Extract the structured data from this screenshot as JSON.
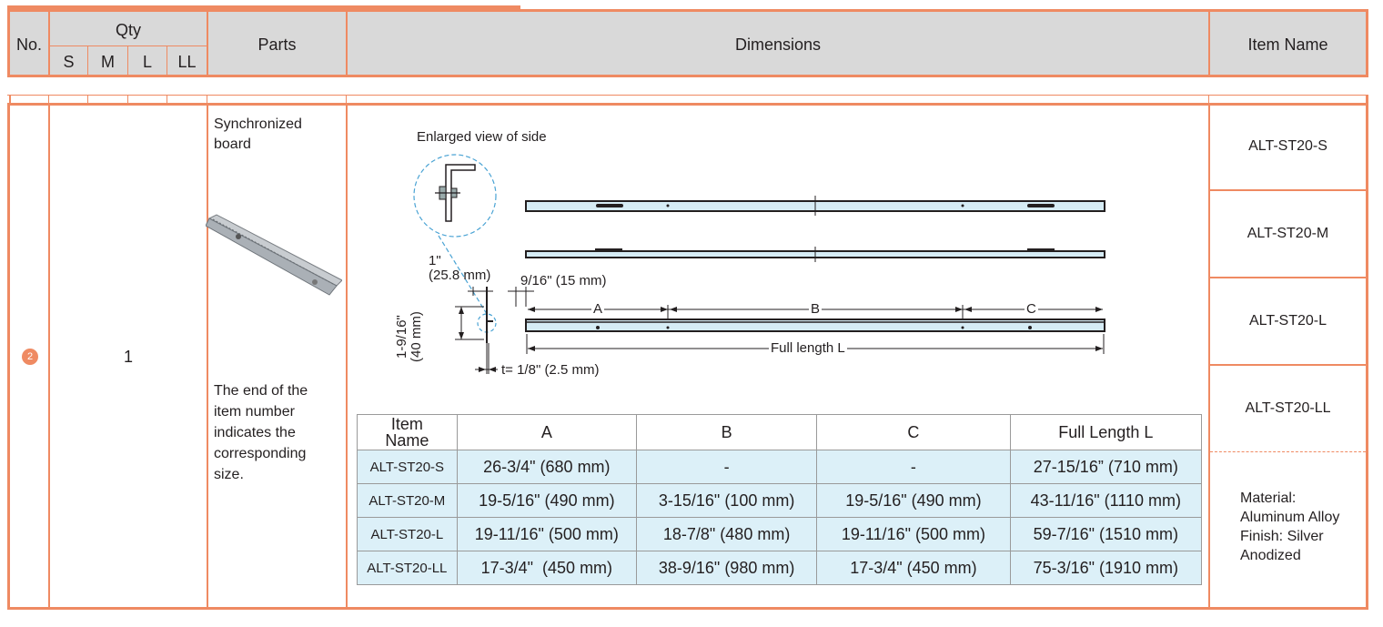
{
  "header": {
    "no_label": "No.",
    "qty_label": "Qty",
    "sizes": [
      "S",
      "M",
      "L",
      "LL"
    ],
    "parts_label": "Parts",
    "dimensions_label": "Dimensions",
    "item_name_label": "Item Name"
  },
  "row": {
    "number": "2",
    "qty": "1",
    "part_name": "Synchronized\nboard",
    "note": "The end of the\nitem number\nindicates the\ncorresponding\nsize.",
    "item_names": [
      "ALT-ST20-S",
      "ALT-ST20-M",
      "ALT-ST20-L",
      "ALT-ST20-LL"
    ],
    "material": "Material:\nAluminum Alloy\nFinish: Silver\nAnodized"
  },
  "drawing": {
    "enlarged_label": "Enlarged view of side",
    "dim_1in": "1\"",
    "dim_25_8": "(25.8 mm)",
    "dim_9_16": "9/16\" (15 mm)",
    "dim_1_9_16": "1-9/16\"",
    "dim_40": "(40 mm)",
    "dim_t": "t= 1/8\" (2.5 mm)",
    "label_a": "A",
    "label_b": "B",
    "label_c": "C",
    "full_length": "Full length L"
  },
  "spec_table": {
    "headers": [
      "Item\nName",
      "A",
      "B",
      "C",
      "Full Length L"
    ],
    "rows": [
      [
        "ALT-ST20-S",
        "26-3/4\" (680 mm)",
        "-",
        "-",
        "27-15/16” (710 mm)"
      ],
      [
        "ALT-ST20-M",
        "19-5/16\" (490 mm)",
        "3-15/16\" (100 mm)",
        "19-5/16\" (490 mm)",
        "43-11/16\" (1110 mm)"
      ],
      [
        "ALT-ST20-L",
        "19-11/16\" (500 mm)",
        "18-7/8\" (480 mm)",
        "19-11/16\" (500 mm)",
        "59-7/16\" (1510 mm)"
      ],
      [
        "ALT-ST20-LL",
        "17-3/4\"  (450 mm)",
        "38-9/16\" (980 mm)",
        "17-3/4\" (450 mm)",
        "75-3/16\" (1910 mm)"
      ]
    ]
  },
  "colors": {
    "accent": "#ef8a62",
    "header_bg": "#d9d9d9",
    "table_fill": "#dcf0f8",
    "rail_fill": "#d6ecf5"
  }
}
